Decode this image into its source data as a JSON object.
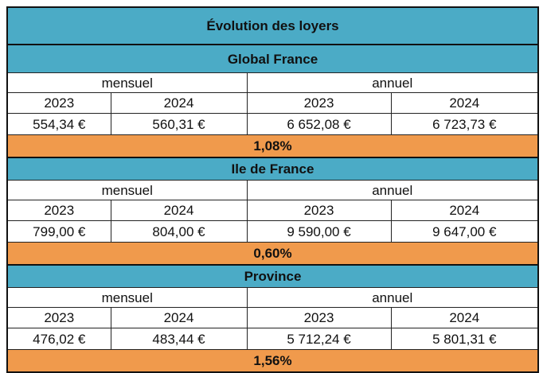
{
  "table": {
    "title": "Évolution des loyers",
    "sections": [
      {
        "name": "Global France",
        "period_labels": [
          "mensuel",
          "annuel"
        ],
        "years": [
          "2023",
          "2024",
          "2023",
          "2024"
        ],
        "values": [
          "554,34 €",
          "560,31 €",
          "6 652,08 €",
          "6 723,73 €"
        ],
        "change": "1,08%"
      },
      {
        "name": "Ile de France",
        "period_labels": [
          "mensuel",
          "annuel"
        ],
        "years": [
          "2023",
          "2024",
          "2023",
          "2024"
        ],
        "values": [
          "799,00 €",
          "804,00 €",
          "9 590,00 €",
          "9 647,00 €"
        ],
        "change": "0,60%"
      },
      {
        "name": "Province",
        "period_labels": [
          "mensuel",
          "annuel"
        ],
        "years": [
          "2023",
          "2024",
          "2023",
          "2024"
        ],
        "values": [
          "476,02 €",
          "483,44 €",
          "5 712,24 €",
          "5 801,31 €"
        ],
        "change": "1,56%"
      }
    ]
  },
  "colors": {
    "header_blue": "#4babc6",
    "change_orange": "#f09a4c",
    "border": "#111111"
  }
}
